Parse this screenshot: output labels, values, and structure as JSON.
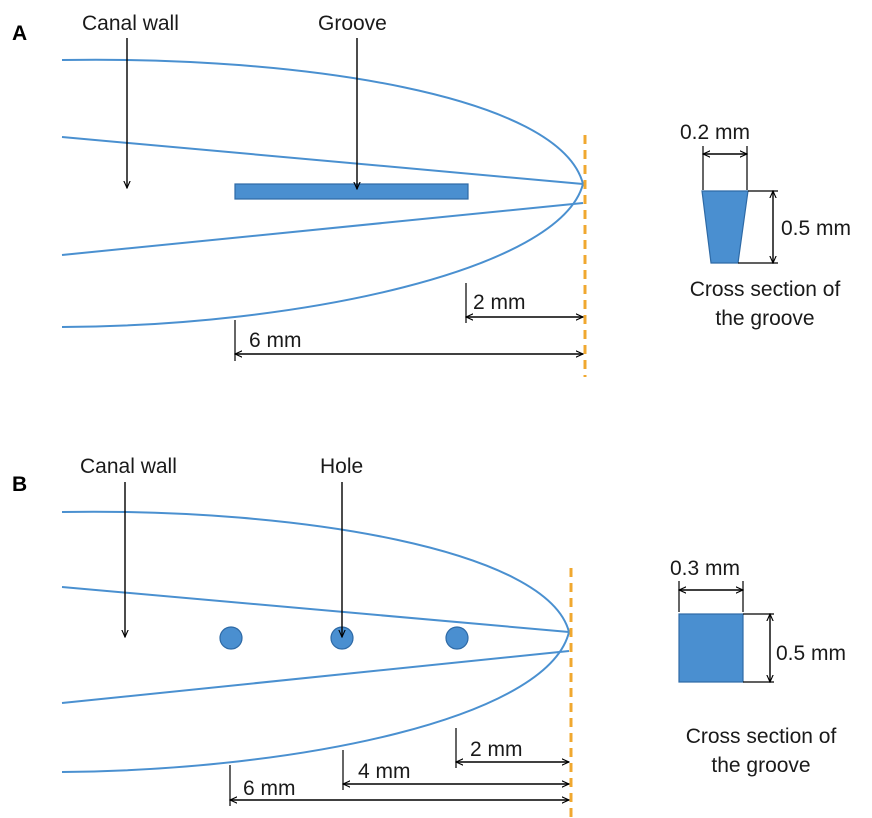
{
  "colors": {
    "canal_stroke": "#4a90d0",
    "feature_fill": "#4a8fd0",
    "feature_stroke": "#2e6aa6",
    "dashed_line": "#f0a830",
    "text": "#1a1a1a"
  },
  "panel_a": {
    "tag": "A",
    "canal_wall_label": "Canal wall",
    "feature_label": "Groove",
    "dim_2": "2 mm",
    "dim_6": "6 mm",
    "cross_width": "0.2 mm",
    "cross_depth": "0.5 mm",
    "cross_caption_1": "Cross section of",
    "cross_caption_2": "the groove"
  },
  "panel_b": {
    "tag": "B",
    "canal_wall_label": "Canal wall",
    "feature_label": "Hole",
    "dim_2": "2 mm",
    "dim_4": "4 mm",
    "dim_6": "6 mm",
    "cross_width": "0.3 mm",
    "cross_depth": "0.5 mm",
    "cross_caption_1": "Cross section of",
    "cross_caption_2": "the groove"
  }
}
